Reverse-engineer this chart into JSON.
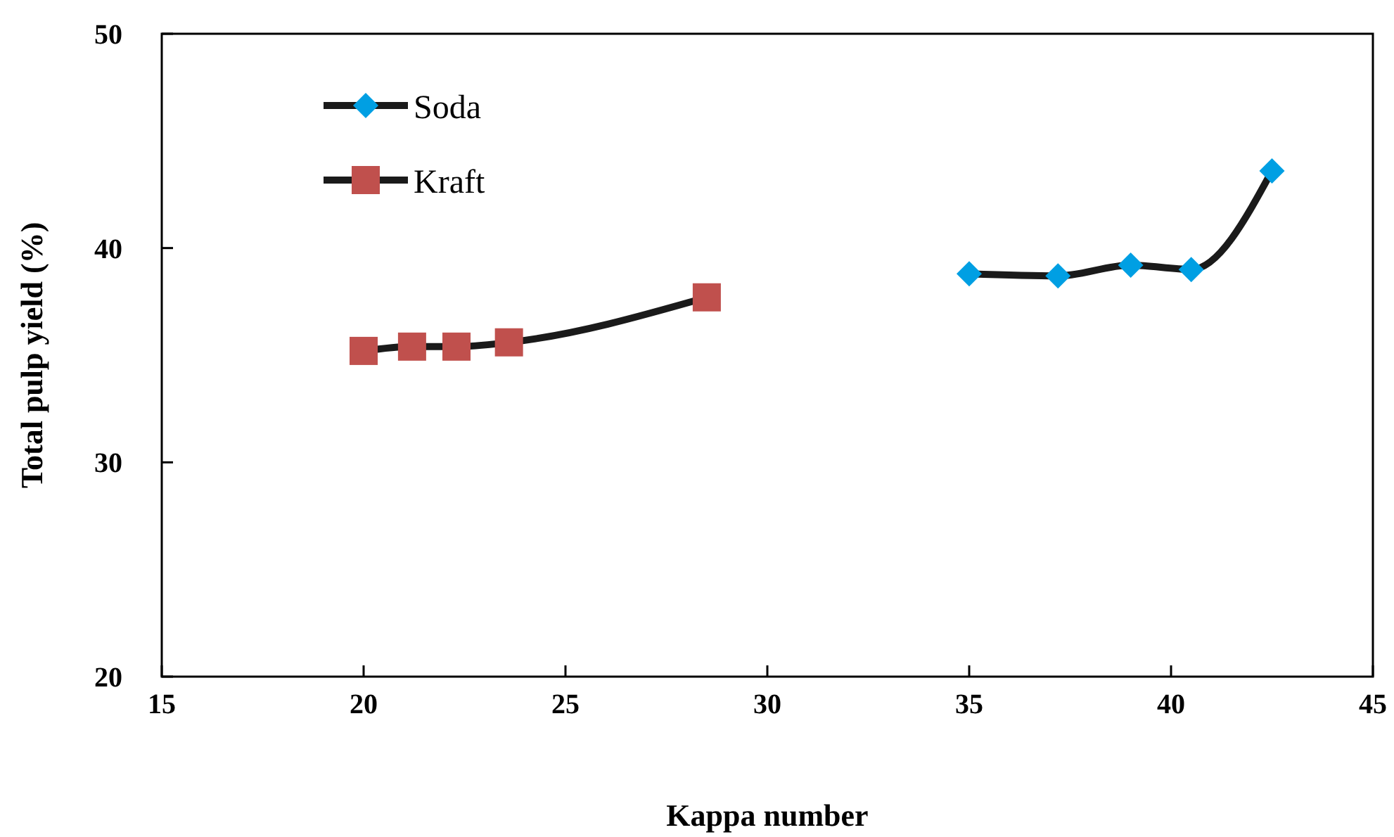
{
  "chart_data": {
    "type": "line",
    "xlabel": "Kappa number",
    "ylabel": "Total pulp yield (%)",
    "xlim": [
      15,
      45
    ],
    "xticks": [
      15,
      20,
      25,
      30,
      35,
      40,
      45
    ],
    "ylim": [
      20,
      50
    ],
    "yticks": [
      20,
      30,
      40,
      50
    ],
    "grid": false,
    "legend": "top left",
    "line_style": "solid",
    "series": [
      {
        "name": "Soda",
        "color": "#009fe3",
        "marker": "diamond",
        "x": [
          35.0,
          37.2,
          39.0,
          40.5,
          42.5
        ],
        "values": [
          38.8,
          38.7,
          39.2,
          39.0,
          43.6
        ]
      },
      {
        "name": "Kraft",
        "color": "#c0504d",
        "marker": "square",
        "x": [
          20.0,
          21.2,
          22.3,
          23.6,
          28.5
        ],
        "values": [
          35.2,
          35.4,
          35.4,
          35.6,
          37.7
        ]
      }
    ]
  }
}
